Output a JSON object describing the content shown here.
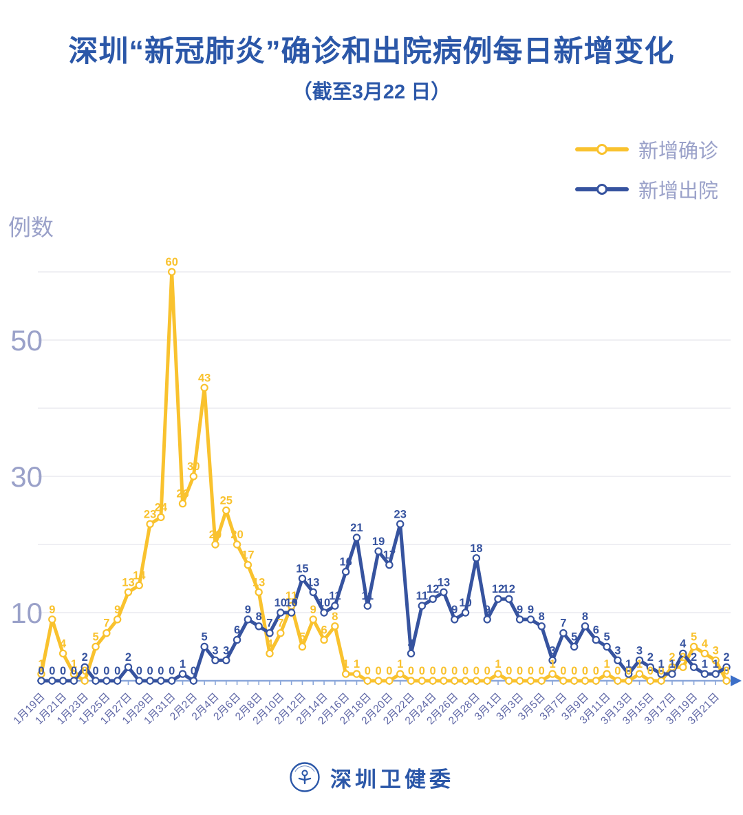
{
  "header": {
    "title": "深圳“新冠肺炎”确诊和出院病例每日新增变化",
    "subtitle": "（截至3月22 日）"
  },
  "colors": {
    "title_blue": "#2B57A8",
    "confirmed_yellow": "#F9C22E",
    "discharged_blue": "#36539F",
    "muted_text": "#9AA1C9",
    "x_label_text": "#5F67A6",
    "gridline": "#EAEAEF",
    "axis_line": "#8BA7DA",
    "arrow_blue": "#3C6FC8"
  },
  "legend": [
    {
      "label": "新增确诊",
      "color": "#F9C22E"
    },
    {
      "label": "新增出院",
      "color": "#36539F"
    }
  ],
  "footer": {
    "org": "深圳卫健委",
    "logo": "shenzhen-health-commission-badge"
  },
  "chart_data": {
    "type": "line",
    "title": "深圳“新冠肺炎”确诊和出院病例每日新增变化",
    "subtitle": "（截至3月22 日）",
    "ylabel": "例数",
    "xlabel": "",
    "ylim": [
      0,
      63
    ],
    "yticks_labeled": [
      10,
      30,
      50
    ],
    "gridline_values": [
      10,
      20,
      30,
      40,
      50,
      60
    ],
    "x_label_step": 2,
    "legend_position": "top-right",
    "x": [
      "1月19日",
      "1月20日",
      "1月21日",
      "1月22日",
      "1月23日",
      "1月24日",
      "1月25日",
      "1月26日",
      "1月27日",
      "1月28日",
      "1月29日",
      "1月30日",
      "1月31日",
      "2月1日",
      "2月2日",
      "2月3日",
      "2月4日",
      "2月5日",
      "2月6日",
      "2月7日",
      "2月8日",
      "2月9日",
      "2月10日",
      "2月11日",
      "2月12日",
      "2月13日",
      "2月14日",
      "2月15日",
      "2月16日",
      "2月17日",
      "2月18日",
      "2月19日",
      "2月20日",
      "2月21日",
      "2月22日",
      "2月23日",
      "2月24日",
      "2月25日",
      "2月26日",
      "2月27日",
      "2月28日",
      "2月29日",
      "3月1日",
      "3月2日",
      "3月3日",
      "3月4日",
      "3月5日",
      "3月6日",
      "3月7日",
      "3月8日",
      "3月9日",
      "3月10日",
      "3月11日",
      "3月12日",
      "3月13日",
      "3月14日",
      "3月15日",
      "3月16日",
      "3月17日",
      "3月18日",
      "3月19日",
      "3月20日",
      "3月21日",
      "3月22日"
    ],
    "series": [
      {
        "name": "新增确诊",
        "color": "#F9C22E",
        "values": [
          1,
          9,
          4,
          1,
          0,
          5,
          7,
          9,
          13,
          14,
          23,
          24,
          60,
          26,
          30,
          43,
          20,
          25,
          20,
          17,
          13,
          4,
          7,
          11,
          5,
          9,
          6,
          8,
          1,
          1,
          0,
          0,
          0,
          1,
          0,
          0,
          0,
          0,
          0,
          0,
          0,
          0,
          1,
          0,
          0,
          0,
          0,
          1,
          0,
          0,
          0,
          0,
          1,
          0,
          0,
          1,
          0,
          0,
          2,
          2,
          5,
          4,
          3,
          0
        ]
      },
      {
        "name": "新增出院",
        "color": "#36539F",
        "values": [
          0,
          0,
          0,
          0,
          2,
          0,
          0,
          0,
          2,
          0,
          0,
          0,
          0,
          1,
          0,
          5,
          3,
          3,
          6,
          9,
          8,
          7,
          10,
          10,
          15,
          13,
          10,
          11,
          16,
          21,
          11,
          19,
          17,
          23,
          4,
          11,
          12,
          13,
          9,
          10,
          18,
          9,
          12,
          12,
          9,
          9,
          8,
          3,
          7,
          5,
          8,
          6,
          5,
          3,
          1,
          3,
          2,
          1,
          1,
          4,
          2,
          1,
          1,
          2
        ]
      }
    ]
  }
}
